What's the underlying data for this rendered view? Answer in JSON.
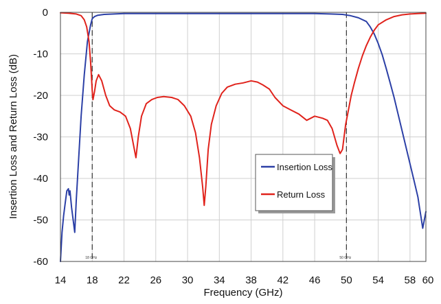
{
  "chart_data": {
    "type": "line",
    "title": "",
    "xlabel": "Frequency (GHz)",
    "ylabel": "Insertion Loss and Return Loss  (dB)",
    "xlim": [
      14,
      60
    ],
    "ylim": [
      -60,
      0
    ],
    "x_ticks": [
      14,
      18,
      22,
      26,
      30,
      34,
      38,
      42,
      46,
      50,
      54,
      58,
      60
    ],
    "x_tick_labels": [
      "14",
      "18",
      "22",
      "26",
      "30",
      "34",
      "38",
      "42",
      "46",
      "50",
      "54",
      "58",
      "60"
    ],
    "y_ticks": [
      0,
      -10,
      -20,
      -30,
      -40,
      -50,
      -60
    ],
    "y_tick_labels": [
      "0",
      "-10",
      "-20",
      "-30",
      "-40",
      "-50",
      "-60"
    ],
    "grid": true,
    "legend_position": "center-right",
    "markers": [
      {
        "x": 18,
        "label": "18 GHz"
      },
      {
        "x": 50,
        "label": "50 GHz"
      }
    ],
    "series": [
      {
        "name": "Insertion Loss",
        "color": "#2b3fa6",
        "x": [
          14,
          14.2,
          14.4,
          14.6,
          14.8,
          15.0,
          15.1,
          15.2,
          15.4,
          15.6,
          15.8,
          16.0,
          16.3,
          16.6,
          17.0,
          17.4,
          17.8,
          18.0,
          18.3,
          18.7,
          19.5,
          22,
          26,
          30,
          34,
          38,
          42,
          46,
          48,
          49.5,
          50.5,
          51.5,
          52.5,
          53.0,
          53.5,
          54.0,
          54.5,
          55.0,
          55.5,
          56.0,
          56.5,
          57.0,
          57.5,
          58.0,
          58.5,
          59.0,
          59.2,
          59.4,
          59.6,
          59.8,
          60.0
        ],
        "y": [
          -60,
          -53,
          -49,
          -46,
          -43,
          -42.5,
          -44,
          -43,
          -47,
          -50,
          -53,
          -45,
          -35,
          -25,
          -15,
          -7,
          -3,
          -1.5,
          -1.0,
          -0.7,
          -0.5,
          -0.3,
          -0.3,
          -0.3,
          -0.3,
          -0.3,
          -0.3,
          -0.3,
          -0.4,
          -0.5,
          -0.8,
          -1.3,
          -2.2,
          -3.5,
          -5.2,
          -7.5,
          -10.2,
          -13.5,
          -17,
          -20.5,
          -24.5,
          -28.5,
          -32.5,
          -36.5,
          -40.5,
          -44.5,
          -47,
          -49.5,
          -52,
          -50,
          -48
        ]
      },
      {
        "name": "Return Loss",
        "color": "#e0221b",
        "x": [
          14,
          15,
          16,
          16.6,
          17.0,
          17.3,
          17.6,
          17.8,
          18.0,
          18.1,
          18.3,
          18.5,
          18.8,
          19.2,
          19.7,
          20.2,
          20.8,
          21.5,
          22.2,
          22.8,
          23.2,
          23.5,
          23.8,
          24.2,
          24.8,
          25.5,
          26.2,
          27.0,
          28.0,
          28.8,
          29.6,
          30.4,
          31.0,
          31.5,
          31.9,
          32.1,
          32.3,
          32.6,
          33.0,
          33.6,
          34.3,
          35.0,
          36.0,
          37.0,
          38.0,
          38.8,
          39.5,
          40.3,
          41.0,
          42.0,
          43.0,
          44.0,
          45.0,
          46.0,
          47.0,
          47.6,
          48.2,
          48.8,
          49.2,
          49.5,
          49.7,
          49.9,
          50.2,
          50.6,
          51.0,
          51.5,
          52.0,
          52.5,
          53.0,
          53.5,
          54.0,
          55.0,
          56.0,
          57.0,
          58.0,
          59.0,
          60.0
        ],
        "y": [
          -0.1,
          -0.2,
          -0.4,
          -0.8,
          -1.8,
          -3.5,
          -7,
          -12,
          -19,
          -21,
          -19,
          -16.5,
          -15,
          -16.5,
          -20,
          -22.5,
          -23.5,
          -24,
          -25,
          -28,
          -32,
          -35,
          -30,
          -25,
          -22,
          -21,
          -20.5,
          -20.3,
          -20.5,
          -21,
          -22.5,
          -25,
          -29,
          -35,
          -42,
          -46.5,
          -42,
          -33,
          -27,
          -22.5,
          -19.5,
          -18,
          -17.3,
          -17,
          -16.5,
          -16.8,
          -17.5,
          -18.5,
          -20.5,
          -22.5,
          -23.5,
          -24.5,
          -26,
          -25,
          -25.5,
          -26,
          -28,
          -32,
          -34,
          -33,
          -30,
          -27,
          -24,
          -20,
          -17,
          -13.5,
          -10.5,
          -8,
          -6,
          -4.3,
          -3,
          -1.8,
          -1.0,
          -0.6,
          -0.4,
          -0.3,
          -0.2
        ]
      }
    ]
  }
}
